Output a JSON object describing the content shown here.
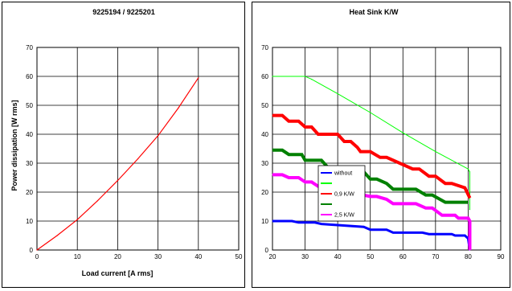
{
  "chart_data": [
    {
      "type": "line",
      "title": "9225194 / 9225201",
      "xlabel": "Load current [A rms]",
      "ylabel": "Power dissipation  [W rms]",
      "xlim": [
        0,
        50
      ],
      "ylim": [
        0,
        70
      ],
      "xticks": [
        "0",
        "10",
        "20",
        "30",
        "40",
        "50"
      ],
      "yticks": [
        "0",
        "10",
        "20",
        "30",
        "40",
        "50",
        "60",
        "70"
      ],
      "grid": true,
      "series": [
        {
          "color": "#ff0000",
          "x": [
            0,
            5,
            10,
            15,
            20,
            25,
            30,
            35,
            40
          ],
          "y": [
            0,
            5,
            10.5,
            17,
            24,
            31.5,
            39.5,
            49,
            59.5
          ]
        }
      ]
    },
    {
      "type": "line",
      "title": "Heat Sink K/W",
      "xlabel": "",
      "ylabel": "",
      "xlim": [
        20,
        90
      ],
      "ylim": [
        0,
        70
      ],
      "xticks": [
        "20",
        "30",
        "40",
        "50",
        "60",
        "70",
        "80",
        "90"
      ],
      "yticks": [
        "0",
        "10",
        "20",
        "30",
        "40",
        "50",
        "60",
        "70"
      ],
      "grid": true,
      "legend": {
        "placement": "center",
        "entries": [
          {
            "label": "without",
            "color": "#0000ff"
          },
          {
            "label": "",
            "color": "#00ff00"
          },
          {
            "label": "0,9 K/W",
            "color": "#ff0000"
          },
          {
            "label": "",
            "color": "#008000"
          },
          {
            "label": "2,5 K/W",
            "color": "#ff00ff"
          }
        ]
      },
      "series": [
        {
          "name": "without",
          "color": "#0000ff",
          "width": 3,
          "x": [
            20,
            26,
            28,
            33,
            35,
            48,
            50,
            55,
            57,
            66,
            68,
            75,
            76,
            79,
            80,
            80.5
          ],
          "y": [
            10,
            10,
            9.5,
            9.5,
            9,
            8,
            7,
            7,
            6,
            6,
            5.5,
            5.5,
            5,
            5,
            4,
            0
          ]
        },
        {
          "color": "#00ff00",
          "width": 1,
          "x": [
            20,
            30,
            32,
            40,
            50,
            60,
            70,
            80,
            80.5,
            80.5
          ],
          "y": [
            60,
            60,
            59,
            54,
            47.5,
            40.5,
            34,
            28,
            27,
            14
          ]
        },
        {
          "name": "0,9 K/W",
          "color": "#ff0000",
          "width": 4,
          "x": [
            20,
            23,
            25,
            28,
            30,
            32,
            34,
            40,
            42,
            44,
            46,
            47,
            50,
            53,
            55,
            63,
            65,
            68,
            70,
            73,
            75,
            79,
            80.5
          ],
          "y": [
            46.5,
            46.5,
            44.5,
            44.5,
            42.5,
            42.5,
            40,
            40,
            37.5,
            37.5,
            35.5,
            34,
            34,
            32,
            32,
            28,
            28,
            25.5,
            25.5,
            23,
            23,
            21.5,
            18
          ]
        },
        {
          "color": "#008000",
          "width": 4,
          "x": [
            20,
            23,
            25,
            29,
            30,
            35,
            37,
            43,
            44,
            48,
            50,
            52,
            55,
            57,
            62,
            64,
            67,
            69,
            73,
            80
          ],
          "y": [
            34.5,
            34.5,
            33,
            33,
            31,
            31,
            28.5,
            28.5,
            27,
            27,
            24.5,
            24.5,
            23,
            21,
            21,
            21,
            19,
            19,
            16.5,
            16.5
          ]
        },
        {
          "name": "2,5 K/W",
          "color": "#ff00ff",
          "width": 4,
          "x": [
            20,
            23,
            25,
            28,
            30,
            32,
            34,
            50,
            52,
            55,
            57,
            62,
            64,
            67,
            69,
            72,
            76,
            77,
            80,
            80.5,
            80.5
          ],
          "y": [
            26,
            26,
            25,
            25,
            23.5,
            23.5,
            22,
            18.5,
            18.5,
            17.5,
            16,
            16,
            16,
            14.5,
            14.5,
            12,
            12,
            11,
            11,
            10,
            0
          ]
        }
      ]
    }
  ]
}
